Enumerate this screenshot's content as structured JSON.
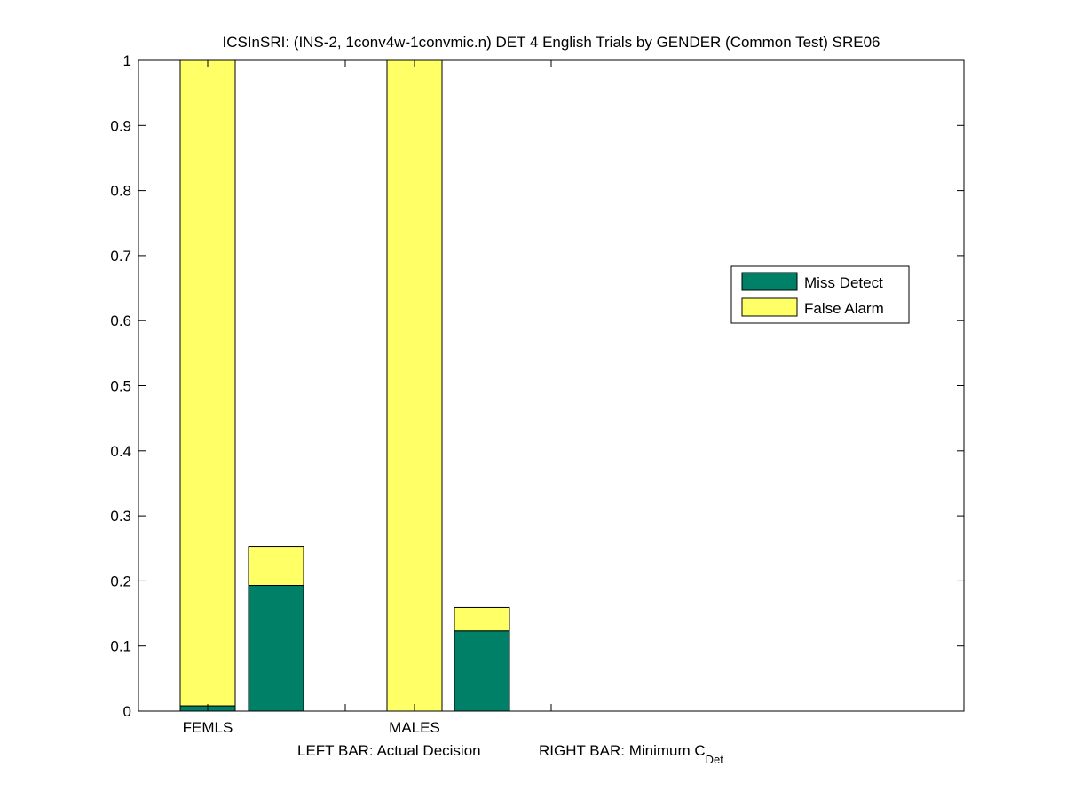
{
  "chart_data": {
    "type": "bar",
    "title": "ICSInSRI: (INS-2, 1conv4w-1convmic.n) DET 4 English Trials by GENDER (Common Test) SRE06",
    "xlabel_left": "LEFT BAR: Actual Decision",
    "xlabel_right_main": "RIGHT BAR: Minimum C",
    "xlabel_right_sub": "Det",
    "ylim": [
      0,
      1
    ],
    "yticks": [
      "0",
      "0.1",
      "0.2",
      "0.3",
      "0.4",
      "0.5",
      "0.6",
      "0.7",
      "0.8",
      "0.9",
      "1"
    ],
    "categories": [
      "FEMLS",
      "MALES"
    ],
    "bars": [
      {
        "category": "FEMLS",
        "which": "actual",
        "miss": 0.008,
        "false_alarm": 0.992
      },
      {
        "category": "FEMLS",
        "which": "minimum",
        "miss": 0.193,
        "false_alarm": 0.06
      },
      {
        "category": "MALES",
        "which": "actual",
        "miss": 0.0,
        "false_alarm": 1.0
      },
      {
        "category": "MALES",
        "which": "minimum",
        "miss": 0.123,
        "false_alarm": 0.036
      }
    ],
    "series": [
      {
        "name": "Miss Detect",
        "color": "#008066"
      },
      {
        "name": "False Alarm",
        "color": "#ffff66"
      }
    ],
    "legend_position": "right"
  }
}
